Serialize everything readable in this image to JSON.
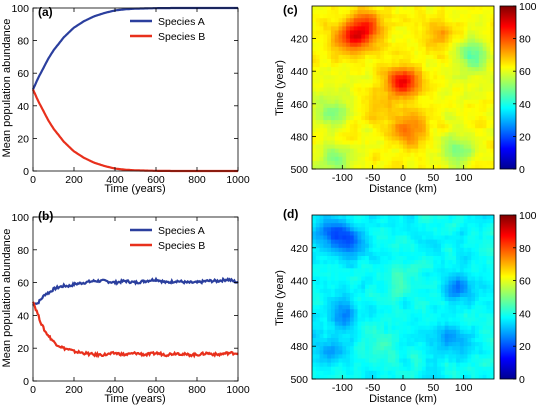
{
  "chart_data": [
    {
      "panel": "(a)",
      "type": "line",
      "xlabel": "Time (years)",
      "ylabel": "Mean population abundance",
      "xlim": [
        0,
        1000
      ],
      "ylim": [
        0,
        100
      ],
      "xticks": [
        0,
        200,
        400,
        600,
        800,
        1000
      ],
      "yticks": [
        0,
        20,
        40,
        60,
        80,
        100
      ],
      "legend_position": "top-right",
      "series": [
        {
          "name": "Species A",
          "color": "#2b3f9e",
          "x": [
            0,
            25,
            50,
            75,
            100,
            150,
            200,
            250,
            300,
            350,
            400,
            450,
            500,
            600,
            700,
            800,
            900,
            1000
          ],
          "values": [
            50,
            57,
            63,
            69,
            74,
            82,
            88,
            92,
            95,
            97,
            98.5,
            99.2,
            99.6,
            99.9,
            100,
            100,
            100,
            100
          ]
        },
        {
          "name": "Species B",
          "color": "#e8301c",
          "x": [
            0,
            25,
            50,
            75,
            100,
            150,
            200,
            250,
            300,
            350,
            400,
            450,
            500,
            600,
            700,
            800,
            900,
            1000
          ],
          "values": [
            50,
            43,
            37,
            31,
            26,
            18,
            12,
            8,
            5,
            3,
            1.5,
            0.8,
            0.4,
            0.1,
            0,
            0,
            0,
            0
          ]
        }
      ]
    },
    {
      "panel": "(b)",
      "type": "line",
      "xlabel": "Time (years)",
      "ylabel": "Mean population abundance",
      "xlim": [
        0,
        1000
      ],
      "ylim": [
        0,
        100
      ],
      "xticks": [
        0,
        200,
        400,
        600,
        800,
        1000
      ],
      "yticks": [
        0,
        20,
        40,
        60,
        80,
        100
      ],
      "legend_position": "top-right",
      "series": [
        {
          "name": "Species A",
          "color": "#2b3f9e",
          "x": [
            0,
            10,
            20,
            40,
            60,
            80,
            100,
            120,
            150,
            180,
            200,
            250,
            300,
            350,
            400,
            450,
            500,
            550,
            600,
            650,
            700,
            750,
            800,
            850,
            900,
            950,
            1000
          ],
          "values": [
            46,
            48,
            47,
            50,
            53,
            54,
            56,
            57,
            58,
            58,
            59,
            60,
            61,
            61,
            60,
            61,
            60,
            61,
            62,
            60,
            61,
            60,
            60,
            61,
            61,
            62,
            60
          ]
        },
        {
          "name": "Species B",
          "color": "#e8301c",
          "x": [
            0,
            10,
            20,
            40,
            60,
            80,
            100,
            120,
            150,
            180,
            200,
            250,
            300,
            350,
            400,
            450,
            500,
            550,
            600,
            650,
            700,
            750,
            800,
            850,
            900,
            950,
            1000
          ],
          "values": [
            49,
            45,
            42,
            35,
            30,
            27,
            24,
            22,
            20,
            19,
            18,
            17,
            16,
            16,
            17,
            16,
            17,
            16,
            17,
            16,
            17,
            16,
            16,
            17,
            16,
            17,
            17
          ]
        }
      ]
    },
    {
      "panel": "(c)",
      "type": "heatmap",
      "xlabel": "Distance (km)",
      "ylabel": "Time (year)",
      "xlim": [
        -150,
        150
      ],
      "ylim": [
        400,
        500
      ],
      "xticks": [
        -100,
        -50,
        0,
        50,
        100
      ],
      "yticks": [
        420,
        440,
        460,
        480,
        500
      ],
      "colorbar": {
        "range": [
          0,
          100
        ],
        "ticks": [
          0,
          20,
          40,
          60,
          80,
          100
        ]
      },
      "base_level": 62,
      "hotspots": [
        {
          "x": -60,
          "y": 412,
          "value": 82
        },
        {
          "x": -85,
          "y": 420,
          "value": 84
        },
        {
          "x": 0,
          "y": 446,
          "value": 88
        },
        {
          "x": 10,
          "y": 476,
          "value": 78
        },
        {
          "x": 60,
          "y": 418,
          "value": 72
        },
        {
          "x": -40,
          "y": 462,
          "value": 70
        }
      ],
      "coldspots": [
        {
          "x": 115,
          "y": 430,
          "value": 48
        },
        {
          "x": -120,
          "y": 465,
          "value": 50
        },
        {
          "x": -110,
          "y": 493,
          "value": 52
        },
        {
          "x": 90,
          "y": 488,
          "value": 50
        }
      ]
    },
    {
      "panel": "(d)",
      "type": "heatmap",
      "xlabel": "Distance (km)",
      "ylabel": "Time (year)",
      "xlim": [
        -150,
        150
      ],
      "ylim": [
        400,
        500
      ],
      "xticks": [
        -100,
        -50,
        0,
        50,
        100
      ],
      "yticks": [
        420,
        440,
        460,
        480,
        500
      ],
      "colorbar": {
        "range": [
          0,
          100
        ],
        "ticks": [
          0,
          20,
          40,
          60,
          80,
          100
        ]
      },
      "base_level": 38,
      "hotspots": [
        {
          "x": 0,
          "y": 440,
          "value": 44
        },
        {
          "x": -40,
          "y": 480,
          "value": 43
        }
      ],
      "coldspots": [
        {
          "x": -115,
          "y": 410,
          "value": 24
        },
        {
          "x": -90,
          "y": 418,
          "value": 25
        },
        {
          "x": 90,
          "y": 444,
          "value": 26
        },
        {
          "x": -100,
          "y": 460,
          "value": 28
        },
        {
          "x": 80,
          "y": 476,
          "value": 28
        },
        {
          "x": -120,
          "y": 482,
          "value": 29
        }
      ]
    }
  ]
}
